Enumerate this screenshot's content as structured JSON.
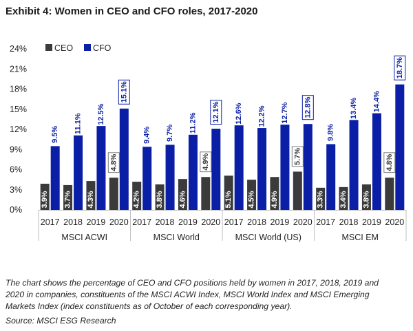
{
  "title": "Exhibit 4: Women in CEO and CFO roles, 2017-2020",
  "note": "The chart shows the percentage of CEO and CFO positions held by women in 2017, 2018, 2019 and 2020 in companies, constituents of the MSCI ACWI Index, MSCI World Index and MSCI Emerging Markets Index (index constituents as of October of each corresponding year).",
  "source": "Source: MSCI ESG Research",
  "colors": {
    "ceo": "#3b3b3b",
    "cfo": "#0a1fa6",
    "highlight_border": "#0a1fa6"
  },
  "chart_data": {
    "type": "bar",
    "ylim": [
      0,
      24
    ],
    "yticks": [
      "0%",
      "3%",
      "6%",
      "9%",
      "12%",
      "15%",
      "18%",
      "21%",
      "24%"
    ],
    "legend": {
      "position": "top-left"
    },
    "groups": [
      {
        "name": "MSCI ACWI",
        "categories": [
          "2017",
          "2018",
          "2019",
          "2020"
        ]
      },
      {
        "name": "MSCI World",
        "categories": [
          "2017",
          "2018",
          "2019",
          "2020"
        ]
      },
      {
        "name": "MSCI World (US)",
        "categories": [
          "2017",
          "2018",
          "2019",
          "2020"
        ]
      },
      {
        "name": "MSCI EM",
        "categories": [
          "2017",
          "2018",
          "2019",
          "2020"
        ]
      }
    ],
    "series": [
      {
        "name": "CEO",
        "values": [
          3.9,
          3.7,
          4.3,
          4.8,
          4.2,
          3.8,
          4.6,
          4.9,
          5.1,
          4.5,
          4.9,
          5.7,
          3.3,
          3.4,
          3.8,
          4.8
        ],
        "labels": [
          "3.9%",
          "3.7%",
          "4.3%",
          "4.8%",
          "4.2%",
          "3.8%",
          "4.6%",
          "4.9%",
          "5.1%",
          "4.5%",
          "4.9%",
          "5.7%",
          "3.3%",
          "3.4%",
          "3.8%",
          "4.8%"
        ]
      },
      {
        "name": "CFO",
        "values": [
          9.5,
          11.1,
          12.5,
          15.1,
          9.4,
          9.7,
          11.2,
          12.1,
          12.6,
          12.2,
          12.7,
          12.8,
          9.8,
          13.4,
          14.4,
          18.7
        ],
        "labels": [
          "9.5%",
          "11.1%",
          "12.5%",
          "15.1%",
          "9.4%",
          "9.7%",
          "11.2%",
          "12.1%",
          "12.6%",
          "12.2%",
          "12.7%",
          "12.8%",
          "9.8%",
          "13.4%",
          "14.4%",
          "18.7%"
        ]
      }
    ]
  }
}
